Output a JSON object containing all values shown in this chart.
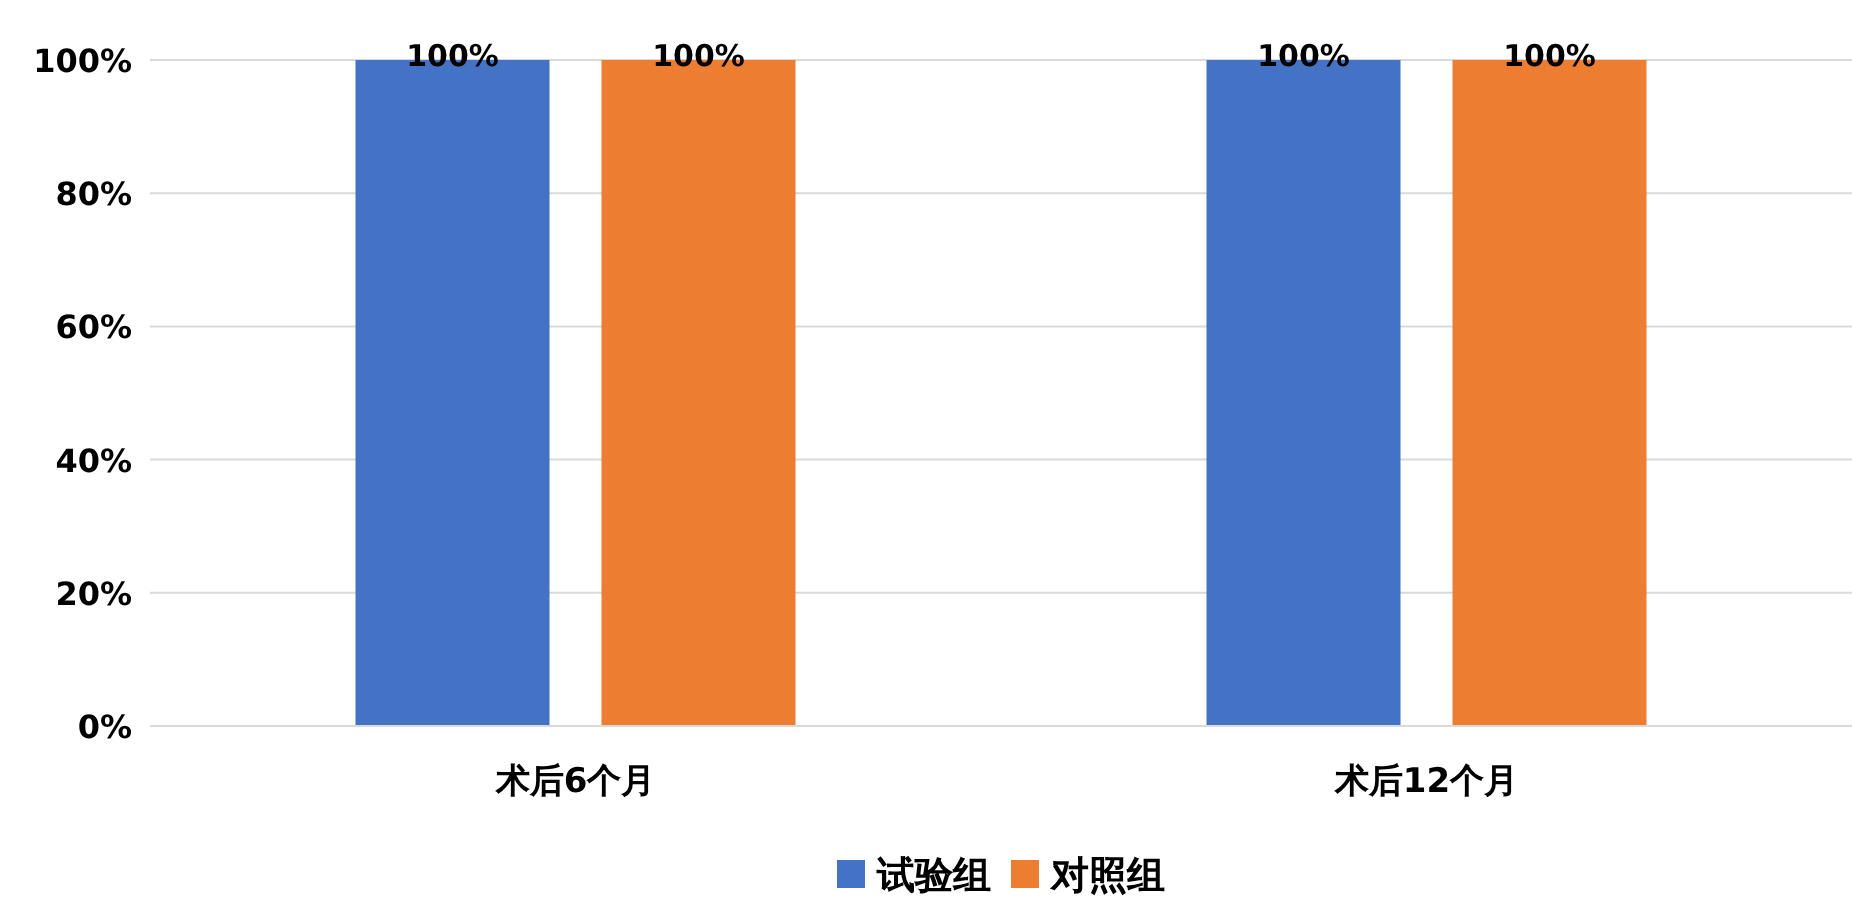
{
  "chart_data": {
    "type": "bar",
    "categories": [
      "术后6个月",
      "术后12个月"
    ],
    "series": [
      {
        "name": "试验组",
        "color": "#4472c4",
        "values": [
          100,
          100
        ],
        "value_labels": [
          "100%",
          "100%"
        ]
      },
      {
        "name": "对照组",
        "color": "#ed7d31",
        "values": [
          100,
          100
        ],
        "value_labels": [
          "100%",
          "100%"
        ]
      }
    ],
    "ylim": [
      0,
      100
    ],
    "yticks": [
      {
        "value": 0,
        "label": "0%"
      },
      {
        "value": 20,
        "label": "20%"
      },
      {
        "value": 40,
        "label": "40%"
      },
      {
        "value": 60,
        "label": "60%"
      },
      {
        "value": 80,
        "label": "80%"
      },
      {
        "value": 100,
        "label": "100%"
      }
    ],
    "grid": "y",
    "legend": "bottom"
  }
}
